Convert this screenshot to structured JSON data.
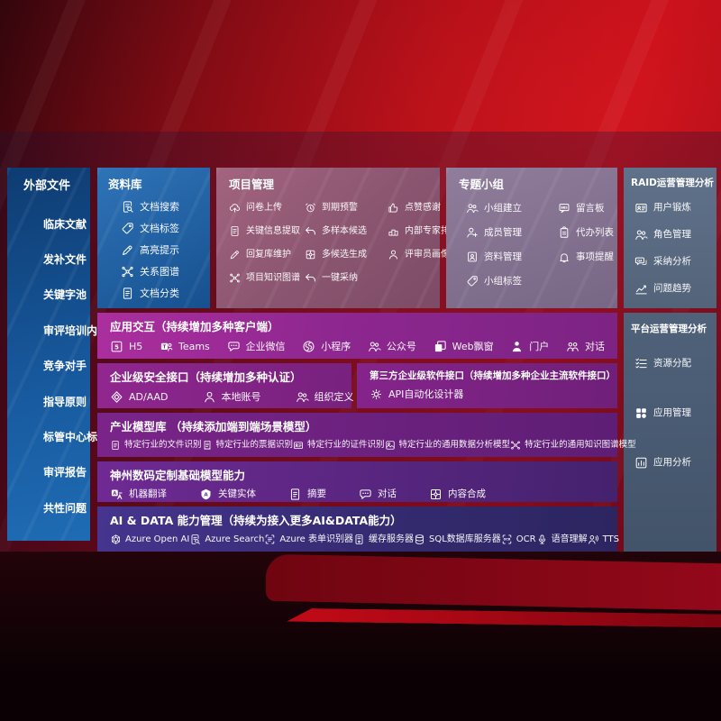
{
  "colors": {
    "background_red": "#b50a16",
    "panel_blue": "#1b5fa6",
    "panel_rose": "#8a5570",
    "panel_lavender": "#84718f",
    "panel_slate": "#55667c",
    "band_magenta": "#8e2790",
    "band_purple": "#6f2079",
    "band_indigo": "#332a6e",
    "text": "#ffffff"
  },
  "panels": {
    "external": {
      "title": "外部文件",
      "items": [
        {
          "label": "临床文献"
        },
        {
          "label": "发补文件"
        },
        {
          "label": "关键字池"
        },
        {
          "label": "审评培训内容"
        },
        {
          "label": "竞争对手"
        },
        {
          "label": "指导原则"
        },
        {
          "label": "标管中心标准"
        },
        {
          "label": "审评报告"
        },
        {
          "label": "共性问题"
        }
      ]
    },
    "repo": {
      "title": "资料库",
      "items": [
        {
          "label": "文档搜索",
          "icon": "doc-search"
        },
        {
          "label": "文档标签",
          "icon": "tag"
        },
        {
          "label": "高亮提示",
          "icon": "pencil"
        },
        {
          "label": "关系图谱",
          "icon": "graph"
        },
        {
          "label": "文档分类",
          "icon": "doc"
        }
      ]
    },
    "project": {
      "title": "项目管理",
      "items": [
        {
          "label": "问卷上传",
          "icon": "cloud-upload"
        },
        {
          "label": "到期预警",
          "icon": "alarm"
        },
        {
          "label": "点赞感谢",
          "icon": "thumbs-up"
        },
        {
          "label": "关键信息提取",
          "icon": "doc"
        },
        {
          "label": "多样本候选",
          "icon": "arrow-back"
        },
        {
          "label": "内部专家排名",
          "icon": "rank"
        },
        {
          "label": "回复库维护",
          "icon": "pencil"
        },
        {
          "label": "多候选生成",
          "icon": "puzzle"
        },
        {
          "label": "评审员画像",
          "icon": "person"
        },
        {
          "label": "项目知识图谱",
          "icon": "graph"
        },
        {
          "label": "一键采纳",
          "icon": "arrow-back"
        }
      ]
    },
    "groups": {
      "title": "专题小组",
      "items": [
        {
          "label": "小组建立",
          "icon": "people"
        },
        {
          "label": "留言板",
          "icon": "bbs"
        },
        {
          "label": "成员管理",
          "icon": "person-add"
        },
        {
          "label": "代办列表",
          "icon": "clipboard"
        },
        {
          "label": "资料管理",
          "icon": "album"
        },
        {
          "label": "事项提醒",
          "icon": "bell"
        },
        {
          "label": "小组标签",
          "icon": "tag"
        }
      ]
    },
    "raid": {
      "title": "RAID运营管理分析",
      "items": [
        {
          "label": "用户锻炼",
          "icon": "id-card"
        },
        {
          "label": "角色管理",
          "icon": "people"
        },
        {
          "label": "采纳分析",
          "icon": "chat-qa"
        },
        {
          "label": "问题趋势",
          "icon": "trend"
        }
      ]
    },
    "platform": {
      "title": "平台运营管理分析",
      "items": [
        {
          "label": "资源分配",
          "icon": "list"
        },
        {
          "label": "应用管理",
          "icon": "apps"
        },
        {
          "label": "应用分析",
          "icon": "chart-box"
        }
      ]
    },
    "interaction": {
      "title": "应用交互（持续增加多种客户端）",
      "items": [
        {
          "label": "H5",
          "icon": "h5"
        },
        {
          "label": "Teams",
          "icon": "teams"
        },
        {
          "label": "企业微信",
          "icon": "chat"
        },
        {
          "label": "小程序",
          "icon": "mini-program"
        },
        {
          "label": "公众号",
          "icon": "people"
        },
        {
          "label": "Web飘窗",
          "icon": "web-window"
        },
        {
          "label": "门户",
          "icon": "portal"
        },
        {
          "label": "对话",
          "icon": "dialog"
        }
      ]
    },
    "security": {
      "title": "企业级安全接口（持续增加多种认证）",
      "items": [
        {
          "label": "AD/AAD",
          "icon": "shield"
        },
        {
          "label": "本地账号",
          "icon": "person"
        },
        {
          "label": "组织定义",
          "icon": "people"
        }
      ]
    },
    "thirdparty": {
      "title": "第三方企业级软件接口（持续增加多种企业主流软件接口）",
      "items": [
        {
          "label": "API自动化设计器",
          "icon": "gear"
        }
      ]
    },
    "industry": {
      "title": "产业模型库 （持续添加端到端场景模型）",
      "items": [
        {
          "label": "特定行业的文件识别",
          "icon": "doc"
        },
        {
          "label": "特定行业的票据识别",
          "icon": "receipt"
        },
        {
          "label": "特定行业的证件识别",
          "icon": "id-card"
        },
        {
          "label": "特定行业的通用数据分析模型",
          "icon": "image"
        },
        {
          "label": "特定行业的通用知识图谱模型",
          "icon": "graph"
        }
      ]
    },
    "base_models": {
      "title": "神州数码定制基础模型能力",
      "items": [
        {
          "label": "机器翻译",
          "icon": "translate"
        },
        {
          "label": "关键实体",
          "icon": "entity"
        },
        {
          "label": "摘要",
          "icon": "doc"
        },
        {
          "label": "对话",
          "icon": "chat"
        },
        {
          "label": "内容合成",
          "icon": "puzzle"
        }
      ]
    },
    "aidata": {
      "title": "AI & DATA 能力管理（持续为接入更多AI&DATA能力）",
      "items": [
        {
          "label": "Azure Open AI",
          "icon": "openai"
        },
        {
          "label": "Azure Search",
          "icon": "doc-search"
        },
        {
          "label": "Azure 表单识别器",
          "icon": "form"
        },
        {
          "label": "缓存服务器",
          "icon": "server"
        },
        {
          "label": "SQL数据库服务器",
          "icon": "database"
        },
        {
          "label": "OCR",
          "icon": "ocr"
        },
        {
          "label": "语音理解",
          "icon": "speech"
        },
        {
          "label": "TTS",
          "icon": "tts"
        }
      ]
    }
  }
}
